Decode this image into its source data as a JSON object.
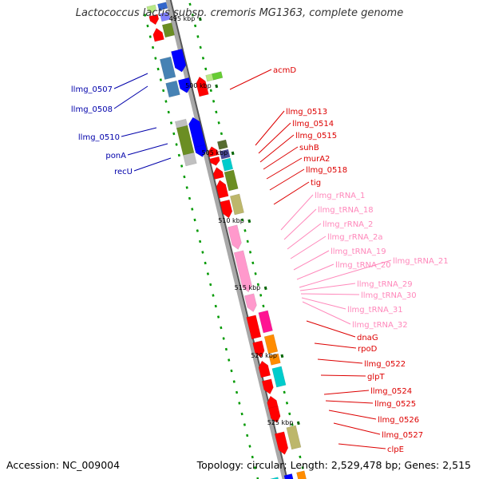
{
  "title": "Lactococcus lactis subsp. cremoris MG1363, complete genome",
  "footer": {
    "accession": "Accession: NC_009004",
    "stats": "Topology: circular; Length: 2,529,478 bp; Genes: 2,515"
  },
  "colors": {
    "backbone": "#8c8c8c",
    "tick": "#009900",
    "left_label": "#0000aa",
    "right_label": "#dd0000",
    "rna_label": "#ff88bb"
  },
  "ticks": [
    "495 kbp",
    "500 kbp",
    "505 kbp",
    "510 kbp",
    "515 kbp",
    "520 kbp",
    "525 kbp"
  ],
  "left_labels": [
    "llmg_0507",
    "llmg_0508",
    "llmg_0510",
    "ponA",
    "recU"
  ],
  "right_labels": [
    "acmD",
    "llmg_0513",
    "llmg_0514",
    "llmg_0515",
    "suhB",
    "murA2",
    "llmg_0518",
    "tig",
    "llmg_rRNA_1",
    "llmg_tRNA_18",
    "llmg_rRNA_2",
    "llmg_rRNA_2a",
    "llmg_tRNA_19",
    "llmg_tRNA_20",
    "llmg_tRNA_21",
    "llmg_tRNA_29",
    "llmg_tRNA_30",
    "llmg_tRNA_31",
    "llmg_tRNA_32",
    "dnaG",
    "rpoD",
    "llmg_0522",
    "glpT",
    "llmg_0524",
    "llmg_0525",
    "llmg_0526",
    "llmg_0527",
    "clpE"
  ]
}
